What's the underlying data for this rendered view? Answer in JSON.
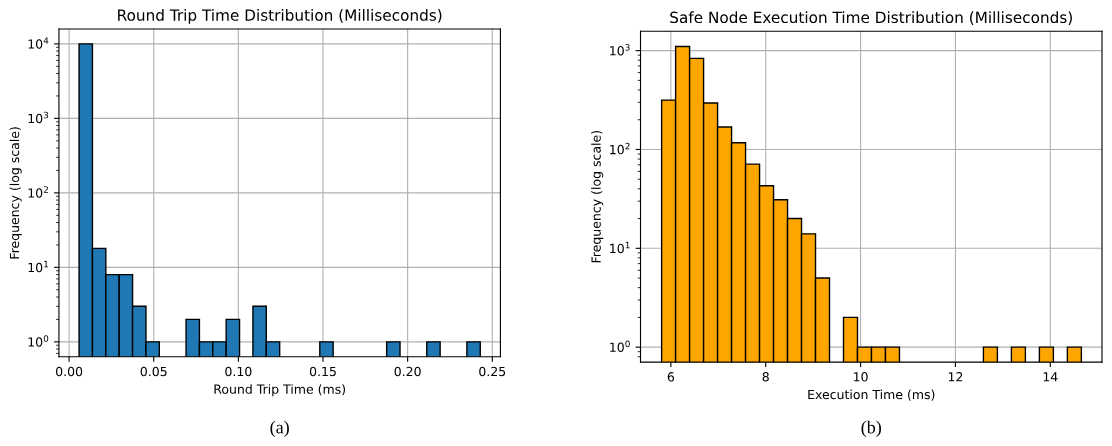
{
  "chart_data": [
    {
      "type": "histogram",
      "title": "Round Trip Time Distribution (Milliseconds)",
      "xlabel": "Round Trip Time (ms)",
      "ylabel": "Frequency (log scale)",
      "color": "#1f77b4",
      "bins": [
        0.0059,
        0.0138,
        0.0217,
        0.0296,
        0.0375,
        0.0454,
        0.0533,
        0.0612,
        0.0691,
        0.077,
        0.0849,
        0.0928,
        0.1007,
        0.1086,
        0.1165,
        0.1244,
        0.1323,
        0.1402,
        0.1481,
        0.156,
        0.1639,
        0.1718,
        0.1797,
        0.1876,
        0.1955,
        0.2034,
        0.2113,
        0.2192,
        0.2271,
        0.235,
        0.2429
      ],
      "values": [
        10000,
        18,
        8,
        8,
        3,
        1,
        null,
        null,
        2,
        1,
        1,
        2,
        null,
        3,
        1,
        null,
        null,
        null,
        1,
        null,
        null,
        null,
        null,
        1,
        null,
        null,
        1,
        null,
        null,
        1
      ],
      "log": "y",
      "xlim": [
        -0.006,
        0.2548
      ],
      "ylim": [
        0.63,
        15850
      ],
      "xticks": [
        {
          "value": 0,
          "label": "0.00"
        },
        {
          "value": 0.05,
          "label": "0.05"
        },
        {
          "value": 0.1,
          "label": "0.10"
        },
        {
          "value": 0.15,
          "label": "0.15"
        },
        {
          "value": 0.2,
          "label": "0.20"
        },
        {
          "value": 0.25,
          "label": "0.25"
        }
      ],
      "yticks": [
        {
          "value": 1,
          "label": "10$^{0}$"
        },
        {
          "value": 10,
          "label": "10$^{1}$"
        },
        {
          "value": 100,
          "label": "10$^{2}$"
        },
        {
          "value": 1000,
          "label": "10$^{3}$"
        },
        {
          "value": 10000,
          "label": "10$^{4}$"
        }
      ],
      "grid": true,
      "annotations": [
        "(a)"
      ]
    },
    {
      "type": "histogram",
      "title": "Safe Node Execution Time Distribution (Milliseconds)",
      "xlabel": "Execution Time (ms)",
      "ylabel": "Frequency (log scale)",
      "color": "#ffa500",
      "bins": [
        5.805,
        6.1,
        6.395,
        6.69,
        6.985,
        7.28,
        7.575,
        7.87,
        8.165,
        8.46,
        8.755,
        9.05,
        9.345,
        9.64,
        9.935,
        10.23,
        10.525,
        10.82,
        11.115,
        11.41,
        11.705,
        12.0,
        12.295,
        12.59,
        12.885,
        13.18,
        13.475,
        13.77,
        14.065,
        14.36,
        14.655
      ],
      "values": [
        316,
        1100,
        834,
        295,
        169,
        117,
        71,
        43,
        31,
        20,
        14,
        5,
        null,
        2,
        1,
        1,
        1,
        null,
        null,
        null,
        null,
        null,
        null,
        1,
        null,
        1,
        null,
        1,
        null,
        1
      ],
      "log": "y",
      "xlim": [
        5.36,
        15.09
      ],
      "ylim": [
        0.705,
        1572
      ],
      "xticks": [
        6,
        8,
        10,
        12,
        14
      ],
      "yticks": [
        {
          "value": 1,
          "label": "10$^{0}$"
        },
        {
          "value": 10,
          "label": "10$^{1}$"
        },
        {
          "value": 100,
          "label": "10$^{2}$"
        },
        {
          "value": 1000,
          "label": "10$^{3}$"
        }
      ],
      "grid": true,
      "annotations": [
        "(b)"
      ]
    }
  ]
}
